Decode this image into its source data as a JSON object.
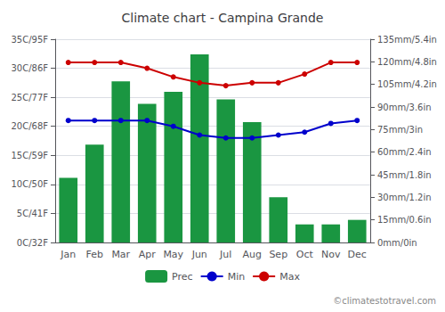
{
  "chart_data": {
    "type": "bar",
    "title": "Climate chart - Campina Grande",
    "categories": [
      "Jan",
      "Feb",
      "Mar",
      "Apr",
      "May",
      "Jun",
      "Jul",
      "Aug",
      "Sep",
      "Oct",
      "Nov",
      "Dec"
    ],
    "series": [
      {
        "name": "Prec",
        "type": "bar",
        "color": "#1a9641",
        "axis": "y2",
        "values": [
          43,
          65,
          107,
          92,
          100,
          125,
          95,
          80,
          30,
          12,
          12,
          15
        ]
      },
      {
        "name": "Min",
        "type": "line",
        "color": "#0000cc",
        "marker": "circle",
        "values": [
          21,
          21,
          21,
          21,
          20,
          18.5,
          18,
          18,
          18.5,
          19,
          20.5,
          21
        ]
      },
      {
        "name": "Max",
        "type": "line",
        "color": "#cc0000",
        "marker": "circle",
        "values": [
          31,
          31,
          31,
          30,
          28.5,
          27.5,
          27,
          27.5,
          27.5,
          29,
          31,
          31
        ]
      }
    ],
    "ylim": [
      0,
      35
    ],
    "yticks": [
      {
        "value": 0,
        "label": "0C/32F"
      },
      {
        "value": 5,
        "label": "5C/41F"
      },
      {
        "value": 10,
        "label": "10C/50F"
      },
      {
        "value": 15,
        "label": "15C/59F"
      },
      {
        "value": 20,
        "label": "20C/68F"
      },
      {
        "value": 25,
        "label": "25C/77F"
      },
      {
        "value": 30,
        "label": "30C/86F"
      },
      {
        "value": 35,
        "label": "35C/95F"
      }
    ],
    "y2lim": [
      0,
      135
    ],
    "y2ticks": [
      {
        "value": 0,
        "label": "0mm/0in"
      },
      {
        "value": 15,
        "label": "15mm/0.6in"
      },
      {
        "value": 30,
        "label": "30mm/1.2in"
      },
      {
        "value": 45,
        "label": "45mm/1.8in"
      },
      {
        "value": 60,
        "label": "60mm/2.4in"
      },
      {
        "value": 75,
        "label": "75mm/3in"
      },
      {
        "value": 90,
        "label": "90mm/3.6in"
      },
      {
        "value": 105,
        "label": "105mm/4.2in"
      },
      {
        "value": 120,
        "label": "120mm/4.8in"
      },
      {
        "value": 135,
        "label": "135mm/5.4in"
      }
    ],
    "grid": true,
    "legend": "bottom",
    "annotations": [
      "©climatestotravel.com"
    ]
  }
}
